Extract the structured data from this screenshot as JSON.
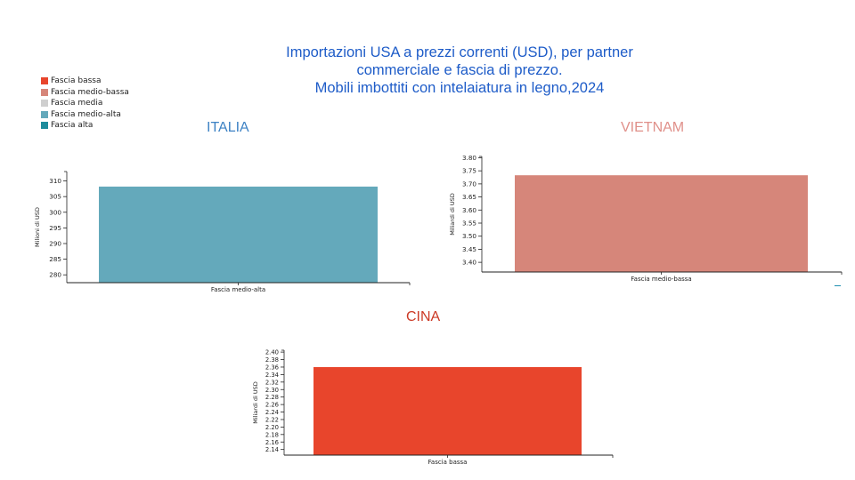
{
  "header": {
    "title_lines": [
      "Importazioni USA a prezzi correnti (USD), per partner",
      "commerciale e fascia di prezzo.",
      "Mobili imbottiti con intelaiatura in legno,2024"
    ]
  },
  "legend": [
    {
      "label": "Fascia bassa",
      "color": "#e8452c"
    },
    {
      "label": "Fascia medio-bassa",
      "color": "#d6867a"
    },
    {
      "label": "Fascia media",
      "color": "#cfcfcf"
    },
    {
      "label": "Fascia medio-alta",
      "color": "#64a9bb"
    },
    {
      "label": "Fascia alta",
      "color": "#1e8c9c"
    }
  ],
  "chart_data": [
    {
      "type": "bar",
      "title": "ITALIA",
      "title_color": "#3d82c4",
      "categories": [
        "Fascia medio-alta"
      ],
      "values": [
        308.2
      ],
      "ylabel": "Milioni di USD",
      "ylim": [
        277.5,
        313
      ],
      "yticks": [
        280,
        285,
        290,
        295,
        300,
        305,
        310
      ],
      "ytick_labels": [
        "280",
        "285",
        "290",
        "295",
        "300",
        "305",
        "310"
      ],
      "bar_color": "#64a9bb"
    },
    {
      "type": "bar",
      "title": "VIETNAM",
      "title_color": "#e0908a",
      "categories": [
        "Fascia medio-bassa"
      ],
      "values": [
        3.733
      ],
      "ylabel": "Miliardi di USD",
      "ylim": [
        3.363,
        3.805
      ],
      "yticks": [
        3.4,
        3.45,
        3.5,
        3.55,
        3.6,
        3.65,
        3.7,
        3.75,
        3.8
      ],
      "ytick_labels": [
        "3.40",
        "3.45",
        "3.50",
        "3.55",
        "3.60",
        "3.65",
        "3.70",
        "3.75",
        "3.80"
      ],
      "bar_color": "#d6867a"
    },
    {
      "type": "bar",
      "title": "CINA",
      "title_color": "#cc3a26",
      "categories": [
        "Fascia bassa"
      ],
      "values": [
        2.36
      ],
      "ylabel": "Miliardi di USD",
      "ylim": [
        2.125,
        2.405
      ],
      "yticks": [
        2.14,
        2.16,
        2.18,
        2.2,
        2.22,
        2.24,
        2.26,
        2.28,
        2.3,
        2.32,
        2.34,
        2.36,
        2.38,
        2.4
      ],
      "ytick_labels": [
        "2.14",
        "2.16",
        "2.18",
        "2.20",
        "2.22",
        "2.24",
        "2.26",
        "2.28",
        "2.30",
        "2.32",
        "2.34",
        "2.36",
        "2.38",
        "2.40"
      ],
      "bar_color": "#e8452c"
    }
  ]
}
